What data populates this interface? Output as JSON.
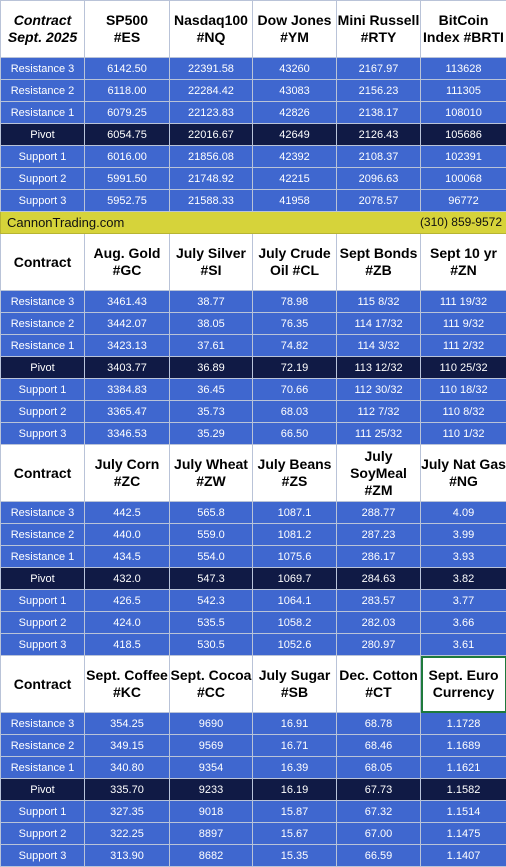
{
  "sections": [
    {
      "headers": [
        [
          "Contract",
          "Sept. 2025"
        ],
        [
          "SP500",
          "#ES"
        ],
        [
          "Nasdaq100",
          "#NQ"
        ],
        [
          "Dow Jones",
          "#YM"
        ],
        [
          "Mini Russell",
          "#RTY"
        ],
        [
          "BitCoin",
          "Index #BRTI"
        ]
      ],
      "rows": [
        [
          "Resistance 3",
          "6142.50",
          "22391.58",
          "43260",
          "2167.97",
          "113628"
        ],
        [
          "Resistance 2",
          "6118.00",
          "22284.42",
          "43083",
          "2156.23",
          "111305"
        ],
        [
          "Resistance 1",
          "6079.25",
          "22123.83",
          "42826",
          "2138.17",
          "108010"
        ],
        [
          "Pivot",
          "6054.75",
          "22016.67",
          "42649",
          "2126.43",
          "105686"
        ],
        [
          "Support 1",
          "6016.00",
          "21856.08",
          "42392",
          "2108.37",
          "102391"
        ],
        [
          "Support 2",
          "5991.50",
          "21748.92",
          "42215",
          "2096.63",
          "100068"
        ],
        [
          "Support 3",
          "5952.75",
          "21588.33",
          "41958",
          "2078.57",
          "96772"
        ]
      ]
    },
    {
      "headers": [
        [
          "Contract"
        ],
        [
          "Aug. Gold",
          "#GC"
        ],
        [
          "July Silver",
          "#SI"
        ],
        [
          "July Crude",
          "Oil #CL"
        ],
        [
          "Sept Bonds",
          "#ZB"
        ],
        [
          "Sept 10 yr",
          "#ZN"
        ]
      ],
      "rows": [
        [
          "Resistance 3",
          "3461.43",
          "38.77",
          "78.98",
          "115  8/32",
          "111 19/32"
        ],
        [
          "Resistance 2",
          "3442.07",
          "38.05",
          "76.35",
          "114 17/32",
          "111  9/32"
        ],
        [
          "Resistance 1",
          "3423.13",
          "37.61",
          "74.82",
          "114  3/32",
          "111  2/32"
        ],
        [
          "Pivot",
          "3403.77",
          "36.89",
          "72.19",
          "113 12/32",
          "110 25/32"
        ],
        [
          "Support 1",
          "3384.83",
          "36.45",
          "70.66",
          "112 30/32",
          "110 18/32"
        ],
        [
          "Support 2",
          "3365.47",
          "35.73",
          "68.03",
          "112  7/32",
          "110  8/32"
        ],
        [
          "Support 3",
          "3346.53",
          "35.29",
          "66.50",
          "111 25/32",
          "110  1/32"
        ]
      ]
    },
    {
      "headers": [
        [
          "Contract"
        ],
        [
          "July Corn",
          "#ZC"
        ],
        [
          "July  Wheat",
          "#ZW"
        ],
        [
          "July Beans",
          "#ZS"
        ],
        [
          "July",
          "SoyMeal",
          "#ZM"
        ],
        [
          "July Nat Gas",
          "#NG"
        ]
      ],
      "rows": [
        [
          "Resistance 3",
          "442.5",
          "565.8",
          "1087.1",
          "288.77",
          "4.09"
        ],
        [
          "Resistance 2",
          "440.0",
          "559.0",
          "1081.2",
          "287.23",
          "3.99"
        ],
        [
          "Resistance 1",
          "434.5",
          "554.0",
          "1075.6",
          "286.17",
          "3.93"
        ],
        [
          "Pivot",
          "432.0",
          "547.3",
          "1069.7",
          "284.63",
          "3.82"
        ],
        [
          "Support 1",
          "426.5",
          "542.3",
          "1064.1",
          "283.57",
          "3.77"
        ],
        [
          "Support 2",
          "424.0",
          "535.5",
          "1058.2",
          "282.03",
          "3.66"
        ],
        [
          "Support 3",
          "418.5",
          "530.5",
          "1052.6",
          "280.97",
          "3.61"
        ]
      ]
    },
    {
      "headers": [
        [
          "Contract"
        ],
        [
          "Sept. Coffee",
          "#KC"
        ],
        [
          "Sept. Cocoa",
          "#CC"
        ],
        [
          "July Sugar",
          "#SB"
        ],
        [
          "Dec. Cotton",
          "#CT"
        ],
        [
          "Sept. Euro",
          "Currency"
        ]
      ],
      "rows": [
        [
          "Resistance 3",
          "354.25",
          "9690",
          "16.91",
          "68.78",
          "1.1728"
        ],
        [
          "Resistance 2",
          "349.15",
          "9569",
          "16.71",
          "68.46",
          "1.1689"
        ],
        [
          "Resistance 1",
          "340.80",
          "9354",
          "16.39",
          "68.05",
          "1.1621"
        ],
        [
          "Pivot",
          "335.70",
          "9233",
          "16.19",
          "67.73",
          "1.1582"
        ],
        [
          "Support 1",
          "327.35",
          "9018",
          "15.87",
          "67.32",
          "1.1514"
        ],
        [
          "Support 2",
          "322.25",
          "8897",
          "15.67",
          "67.00",
          "1.1475"
        ],
        [
          "Support 3",
          "313.90",
          "8682",
          "15.35",
          "66.59",
          "1.1407"
        ]
      ]
    }
  ],
  "banner": {
    "site": "CannonTrading.com",
    "phone": "(310) 859-9572"
  },
  "colors": {
    "row_bg": "#3f67cf",
    "pivot_bg": "#101a45",
    "banner_bg": "#d6d33a",
    "header_bg": "#ffffff"
  }
}
